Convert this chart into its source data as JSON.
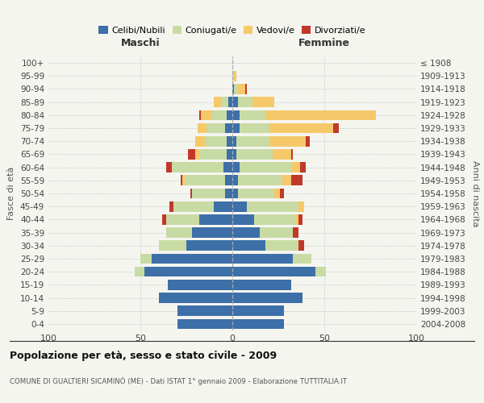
{
  "age_groups": [
    "0-4",
    "5-9",
    "10-14",
    "15-19",
    "20-24",
    "25-29",
    "30-34",
    "35-39",
    "40-44",
    "45-49",
    "50-54",
    "55-59",
    "60-64",
    "65-69",
    "70-74",
    "75-79",
    "80-84",
    "85-89",
    "90-94",
    "95-99",
    "100+"
  ],
  "birth_years": [
    "2004-2008",
    "1999-2003",
    "1994-1998",
    "1989-1993",
    "1984-1988",
    "1979-1983",
    "1974-1978",
    "1969-1973",
    "1964-1968",
    "1959-1963",
    "1954-1958",
    "1949-1953",
    "1944-1948",
    "1939-1943",
    "1934-1938",
    "1929-1933",
    "1924-1928",
    "1919-1923",
    "1914-1918",
    "1909-1913",
    "≤ 1908"
  ],
  "colors": {
    "celibe": "#3d6fa8",
    "coniugato": "#c8dba4",
    "vedovo": "#f5c96a",
    "divorziato": "#c0392b"
  },
  "maschi": {
    "celibe": [
      30,
      30,
      40,
      35,
      48,
      44,
      25,
      22,
      18,
      10,
      4,
      4,
      5,
      3,
      3,
      4,
      3,
      2,
      0,
      0,
      0
    ],
    "coniugato": [
      0,
      0,
      0,
      0,
      5,
      6,
      15,
      14,
      18,
      22,
      18,
      22,
      28,
      15,
      12,
      10,
      8,
      4,
      0,
      0,
      0
    ],
    "vedovo": [
      0,
      0,
      0,
      0,
      0,
      0,
      0,
      0,
      0,
      0,
      0,
      1,
      0,
      2,
      5,
      5,
      6,
      4,
      0,
      0,
      0
    ],
    "divorziato": [
      0,
      0,
      0,
      0,
      0,
      0,
      0,
      0,
      2,
      2,
      1,
      1,
      3,
      4,
      0,
      0,
      1,
      0,
      0,
      0,
      0
    ]
  },
  "femmine": {
    "celibe": [
      28,
      28,
      38,
      32,
      45,
      33,
      18,
      15,
      12,
      8,
      3,
      3,
      4,
      2,
      2,
      4,
      4,
      3,
      1,
      0,
      0
    ],
    "coniugata": [
      0,
      0,
      0,
      0,
      6,
      10,
      18,
      18,
      22,
      28,
      20,
      24,
      28,
      20,
      18,
      16,
      14,
      8,
      2,
      1,
      0
    ],
    "vedova": [
      0,
      0,
      0,
      0,
      0,
      0,
      0,
      0,
      2,
      3,
      3,
      5,
      5,
      10,
      20,
      35,
      60,
      12,
      4,
      1,
      0
    ],
    "divorziata": [
      0,
      0,
      0,
      0,
      0,
      0,
      3,
      3,
      2,
      0,
      2,
      6,
      3,
      1,
      2,
      3,
      0,
      0,
      1,
      0,
      0
    ]
  },
  "title": "Popolazione per età, sesso e stato civile - 2009",
  "subtitle": "COMUNE DI GUALTIERI SICAMINÒ (ME) - Dati ISTAT 1° gennaio 2009 - Elaborazione TUTTITALIA.IT",
  "xlabel_left": "Maschi",
  "xlabel_right": "Femmine",
  "ylabel_left": "Fasce di età",
  "ylabel_right": "Anni di nascita",
  "xlim": 100,
  "legend_labels": [
    "Celibi/Nubili",
    "Coniugati/e",
    "Vedovi/e",
    "Divorziati/e"
  ],
  "bg_color": "#f5f5f0"
}
